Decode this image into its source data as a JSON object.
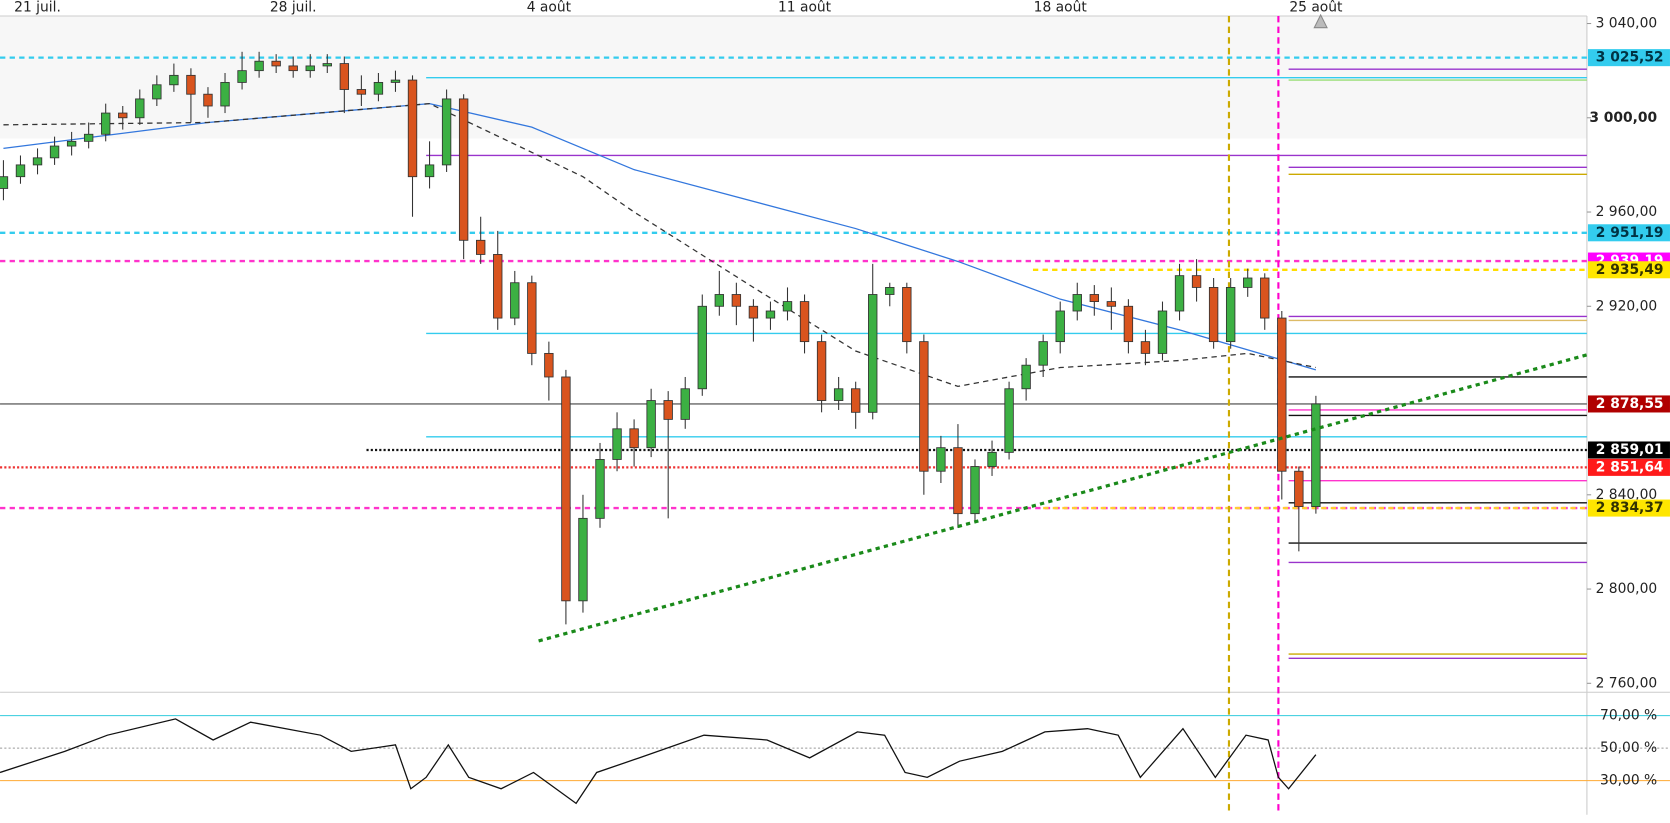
{
  "chart_data": {
    "type": "candlestick",
    "categories": [
      null,
      null,
      "21 juil.",
      null,
      null,
      null,
      null,
      null,
      null,
      null,
      null,
      null,
      null,
      null,
      null,
      null,
      null,
      "28 juil.",
      null,
      null,
      null,
      null,
      null,
      null,
      null,
      null,
      null,
      null,
      null,
      null,
      null,
      null,
      "4 août",
      null,
      null,
      null,
      null,
      null,
      null,
      null,
      null,
      null,
      null,
      null,
      null,
      null,
      null,
      "11 août",
      null,
      null,
      null,
      null,
      null,
      null,
      null,
      null,
      null,
      null,
      null,
      null,
      null,
      null,
      "18 août",
      null,
      null,
      null,
      null,
      null,
      null,
      null,
      null,
      null,
      null,
      null,
      null,
      null,
      null,
      "25 août"
    ],
    "xlim": [
      -0.2,
      92.9
    ],
    "ylim": [
      2756.2,
      3043.2
    ],
    "yticks": [
      {
        "value": 3040,
        "label": "3 040,00"
      },
      {
        "value": 3000,
        "label": "3 000,00"
      },
      {
        "value": 2960,
        "label": "2 960,00"
      },
      {
        "value": 2920,
        "label": "2 920,00"
      },
      {
        "value": 2840,
        "label": "2 840,00"
      },
      {
        "value": 2800,
        "label": "2 800,00"
      },
      {
        "value": 2760,
        "label": "2 760,00"
      }
    ],
    "up_color": "#3cb043",
    "down_color": "#d9541e",
    "candles": [
      [
        2970,
        2982,
        2965,
        2975
      ],
      [
        2975,
        2984,
        2972,
        2980
      ],
      [
        2980,
        2987,
        2976,
        2983
      ],
      [
        2983,
        2992,
        2980,
        2988
      ],
      [
        2988,
        2994,
        2984,
        2990
      ],
      [
        2990,
        2998,
        2987,
        2993
      ],
      [
        2993,
        3006,
        2990,
        3002
      ],
      [
        3002,
        3005,
        2995,
        3000
      ],
      [
        3000,
        3012,
        2997,
        3008
      ],
      [
        3008,
        3018,
        3005,
        3014
      ],
      [
        3014,
        3023,
        3011,
        3018
      ],
      [
        3018,
        3021,
        2998,
        3010
      ],
      [
        3010,
        3013,
        3000,
        3005
      ],
      [
        3005,
        3019,
        3002,
        3015
      ],
      [
        3015,
        3028,
        3012,
        3020
      ],
      [
        3020,
        3028,
        3017,
        3024
      ],
      [
        3024,
        3027,
        3019,
        3022
      ],
      [
        3022,
        3026,
        3017,
        3020
      ],
      [
        3020,
        3027,
        3017,
        3022
      ],
      [
        3022,
        3027,
        3019,
        3023
      ],
      [
        3023,
        3026,
        3002,
        3012
      ],
      [
        3012,
        3018,
        3005,
        3010
      ],
      [
        3010,
        3019,
        3007,
        3015
      ],
      [
        3015,
        3020,
        3011,
        3016
      ],
      [
        3016,
        3018,
        2958,
        2975
      ],
      [
        2975,
        2990,
        2970,
        2980
      ],
      [
        2980,
        3012,
        2977,
        3008
      ],
      [
        3008,
        3010,
        2940,
        2948
      ],
      [
        2948,
        2958,
        2938,
        2942
      ],
      [
        2942,
        2952,
        2910,
        2915
      ],
      [
        2915,
        2935,
        2912,
        2930
      ],
      [
        2930,
        2933,
        2895,
        2900
      ],
      [
        2900,
        2905,
        2880,
        2890
      ],
      [
        2890,
        2893,
        2785,
        2795
      ],
      [
        2795,
        2840,
        2790,
        2830
      ],
      [
        2830,
        2862,
        2826,
        2855
      ],
      [
        2855,
        2875,
        2850,
        2868
      ],
      [
        2868,
        2872,
        2852,
        2860
      ],
      [
        2860,
        2885,
        2856,
        2880
      ],
      [
        2880,
        2884,
        2830,
        2872
      ],
      [
        2872,
        2890,
        2868,
        2885
      ],
      [
        2885,
        2925,
        2882,
        2920
      ],
      [
        2920,
        2935,
        2916,
        2925
      ],
      [
        2925,
        2930,
        2912,
        2920
      ],
      [
        2920,
        2923,
        2905,
        2915
      ],
      [
        2915,
        2922,
        2910,
        2918
      ],
      [
        2918,
        2928,
        2914,
        2922
      ],
      [
        2922,
        2925,
        2900,
        2905
      ],
      [
        2905,
        2908,
        2875,
        2880
      ],
      [
        2880,
        2890,
        2876,
        2885
      ],
      [
        2885,
        2888,
        2868,
        2875
      ],
      [
        2875,
        2938,
        2872,
        2925
      ],
      [
        2925,
        2930,
        2920,
        2928
      ],
      [
        2928,
        2930,
        2900,
        2905
      ],
      [
        2905,
        2908,
        2840,
        2850
      ],
      [
        2850,
        2865,
        2845,
        2860
      ],
      [
        2860,
        2870,
        2826,
        2832
      ],
      [
        2832,
        2855,
        2828,
        2852
      ],
      [
        2852,
        2863,
        2848,
        2858
      ],
      [
        2858,
        2888,
        2855,
        2885
      ],
      [
        2885,
        2898,
        2880,
        2895
      ],
      [
        2895,
        2908,
        2890,
        2905
      ],
      [
        2905,
        2922,
        2900,
        2918
      ],
      [
        2918,
        2930,
        2914,
        2925
      ],
      [
        2925,
        2929,
        2916,
        2922
      ],
      [
        2922,
        2928,
        2910,
        2920
      ],
      [
        2920,
        2923,
        2900,
        2905
      ],
      [
        2905,
        2910,
        2895,
        2900
      ],
      [
        2900,
        2922,
        2897,
        2918
      ],
      [
        2918,
        2938,
        2914,
        2933
      ],
      [
        2933,
        2940,
        2922,
        2928
      ],
      [
        2928,
        2932,
        2902,
        2905
      ],
      [
        2905,
        2932,
        2902,
        2928
      ],
      [
        2928,
        2936,
        2924,
        2932
      ],
      [
        2932,
        2934,
        2910,
        2915
      ],
      [
        2915,
        2918,
        2838,
        2850
      ],
      [
        2850,
        2852,
        2816,
        2835
      ],
      [
        2835,
        2882,
        2832,
        2878.55
      ]
    ],
    "lines": [
      {
        "color": "#3377dd",
        "style": "solid",
        "x": [
          0,
          12,
          25,
          31,
          37,
          50,
          56,
          62,
          69,
          77
        ],
        "values": [
          2987,
          2998,
          3006,
          2996,
          2978,
          2953,
          2939,
          2923,
          2910,
          2893
        ]
      },
      {
        "color": "#333333",
        "style": "dashed",
        "x": [
          0,
          12,
          25,
          34,
          37,
          44,
          50,
          56,
          62,
          69,
          73,
          77
        ],
        "values": [
          2997,
          2998,
          3006,
          2975,
          2960,
          2928,
          2901,
          2886,
          2894,
          2897,
          2900,
          2894
        ]
      }
    ],
    "trendline": {
      "color": "#1a8a1a",
      "x": [
        31.4,
        92.9
      ],
      "values": [
        2778,
        2899.4
      ]
    },
    "levels": [
      {
        "value": 3025.52,
        "color": "#33ccee",
        "style": "dashed",
        "from": -0.2
      },
      {
        "value": 2951.19,
        "color": "#33ccee",
        "style": "dashed",
        "from": -0.2
      },
      {
        "value": 2939.19,
        "color": "#ff33cc",
        "style": "dashed",
        "from": -0.2
      },
      {
        "value": 2834.37,
        "color": "#ff33cc",
        "style": "dashed",
        "from": -0.2
      },
      {
        "value": 2935.49,
        "color": "#ffdd00",
        "style": "dashed",
        "from": 60.4
      },
      {
        "value": 2834.37,
        "color": "#ffcc33",
        "style": "dashed",
        "from": 61
      },
      {
        "value": 3017,
        "color": "#33ccee",
        "style": "solid",
        "from": 24.8
      },
      {
        "value": 2984,
        "color": "#9933cc",
        "style": "solid",
        "from": 24.8
      },
      {
        "value": 2908.5,
        "color": "#33ccee",
        "style": "solid",
        "from": 24.8
      },
      {
        "value": 2864.6,
        "color": "#33ccee",
        "style": "solid",
        "from": 24.8
      },
      {
        "value": 2859.01,
        "color": "#111111",
        "style": "dotted",
        "from": 21.3
      },
      {
        "value": 2851.64,
        "color": "#ee3333",
        "style": "dotted",
        "from": -0.2
      },
      {
        "value": 2878.55,
        "color": "#666666",
        "style": "solid",
        "from": -0.2
      },
      {
        "value": 3020.6,
        "color": "#9933cc",
        "style": "solid",
        "from": 75.4
      },
      {
        "value": 3016,
        "color": "#99dd77",
        "style": "solid",
        "from": 75.4
      },
      {
        "value": 2979,
        "color": "#9933cc",
        "style": "solid",
        "from": 75.4
      },
      {
        "value": 2976,
        "color": "#ccaa00",
        "style": "solid",
        "from": 75.4
      },
      {
        "value": 2915.7,
        "color": "#9933cc",
        "style": "solid",
        "from": 75.4
      },
      {
        "value": 2914,
        "color": "#ddbb66",
        "style": "solid",
        "from": 75.4
      },
      {
        "value": 2890,
        "color": "#111111",
        "style": "solid",
        "from": 75.4
      },
      {
        "value": 2876,
        "color": "#ff33cc",
        "style": "solid",
        "from": 75.4
      },
      {
        "value": 2873.7,
        "color": "#111111",
        "style": "solid",
        "from": 75.4
      },
      {
        "value": 2846,
        "color": "#ff33cc",
        "style": "solid",
        "from": 75.4
      },
      {
        "value": 2836.6,
        "color": "#111111",
        "style": "solid",
        "from": 75.4
      },
      {
        "value": 2819.5,
        "color": "#111111",
        "style": "solid",
        "from": 75.4
      },
      {
        "value": 2811.3,
        "color": "#9933cc",
        "style": "solid",
        "from": 75.4
      },
      {
        "value": 2772.4,
        "color": "#ccaa00",
        "style": "solid",
        "from": 75.4
      },
      {
        "value": 2770.6,
        "color": "#9933cc",
        "style": "solid",
        "from": 75.4
      }
    ],
    "vlines": [
      {
        "x": 71.9,
        "color": "#ccaa00"
      },
      {
        "x": 74.8,
        "color": "#ff00cc"
      }
    ],
    "price_tags": [
      {
        "value": 3025.52,
        "label": "3 025,52",
        "color": "#33ccee",
        "text_color": "#003344"
      },
      {
        "value": 2951.19,
        "label": "2 951,19",
        "color": "#33ccee",
        "text_color": "#003344"
      },
      {
        "value": 2939.19,
        "label": "2 939,19",
        "color": "#ff00ff",
        "text_color": "#ffffff"
      },
      {
        "value": 2935.49,
        "label": "2 935,49",
        "color": "#ffe600",
        "text_color": "#333300"
      },
      {
        "value": 2878.55,
        "label": "2 878,55",
        "color": "#b00000",
        "text_color": "#ffffff"
      },
      {
        "value": 2859.01,
        "label": "2 859,01",
        "color": "#000000",
        "text_color": "#ffffff"
      },
      {
        "value": 2851.64,
        "label": "2 851,64",
        "color": "#ff1a1a",
        "text_color": "#ffffff"
      },
      {
        "value": 2834.37,
        "label": "2 834,37",
        "color": "#ffe600",
        "text_color": "#333300"
      }
    ],
    "rsi": {
      "ylim": [
        9,
        84.4
      ],
      "yticks": [
        {
          "value": 70,
          "label": "70,00 %"
        },
        {
          "value": 50,
          "label": "50,00 %"
        },
        {
          "value": 30,
          "label": "30,00 %"
        }
      ],
      "levels": [
        {
          "value": 70,
          "color": "#33ccdd",
          "style": "solid"
        },
        {
          "value": 50,
          "color": "#999999",
          "style": "dotted"
        },
        {
          "value": 30,
          "color": "#ffaa33",
          "style": "solid"
        }
      ],
      "color": "#111111",
      "x": [
        -0.2,
        3.6,
        6.1,
        10.1,
        12.3,
        14.5,
        18.6,
        20.4,
        23,
        23.9,
        24.8,
        26.1,
        27.3,
        29.2,
        31.1,
        33.6,
        34.8,
        37.3,
        41.1,
        44.8,
        47.3,
        50.1,
        51.7,
        52.9,
        54.2,
        56.1,
        58.6,
        61.1,
        63.6,
        65.4,
        66.7,
        69.2,
        71.1,
        72.9,
        74.2,
        74.8,
        75.4,
        77
      ],
      "values": [
        35,
        48,
        58,
        68,
        55,
        66,
        58,
        48,
        52,
        25,
        32,
        52,
        32,
        25,
        35,
        16,
        35,
        44,
        58,
        55,
        44,
        60,
        58,
        35,
        32,
        42,
        48,
        60,
        62,
        58,
        32,
        62,
        32,
        58,
        55,
        32,
        25,
        46
      ]
    }
  }
}
